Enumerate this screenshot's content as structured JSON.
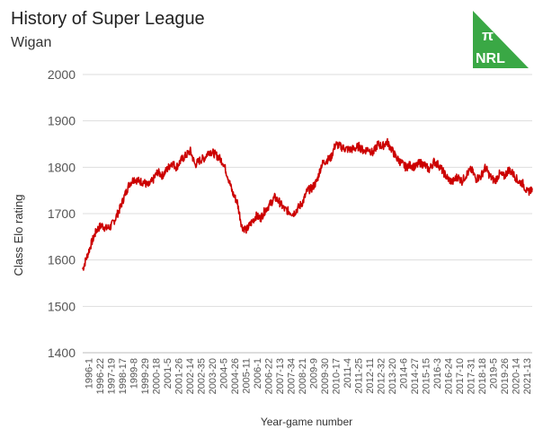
{
  "logo": {
    "line1": "π",
    "line2": "NRL",
    "color": "#3aa845"
  },
  "chart_data": {
    "type": "line",
    "title": "History of Super League",
    "subtitle": "Wigan",
    "xlabel": "Year-game number",
    "ylabel": "Class Elo rating",
    "ylim": [
      1400,
      2000
    ],
    "yticks": [
      1400,
      1500,
      1600,
      1700,
      1800,
      1900,
      2000
    ],
    "grid": true,
    "line_color": "#cc0000",
    "x_tick_labels": [
      "1996-1",
      "1996-22",
      "1997-19",
      "1998-17",
      "1999-8",
      "1999-29",
      "2000-18",
      "2001-5",
      "2001-26",
      "2002-14",
      "2002-35",
      "2003-20",
      "2004-5",
      "2004-26",
      "2005-11",
      "2006-1",
      "2006-22",
      "2007-13",
      "2007-34",
      "2008-21",
      "2009-9",
      "2009-30",
      "2010-17",
      "2011-4",
      "2011-25",
      "2012-11",
      "2012-32",
      "2013-20",
      "2014-6",
      "2014-27",
      "2015-15",
      "2016-3",
      "2016-24",
      "2017-10",
      "2017-31",
      "2018-18",
      "2019-5",
      "2019-26",
      "2020-14",
      "2021-13"
    ],
    "series": [
      {
        "values": [
          1580,
          1610,
          1640,
          1665,
          1675,
          1668,
          1672,
          1690,
          1712,
          1740,
          1765,
          1775,
          1770,
          1768,
          1760,
          1772,
          1790,
          1782,
          1795,
          1810,
          1800,
          1815,
          1825,
          1835,
          1805,
          1815,
          1820,
          1835,
          1830,
          1822,
          1810,
          1780,
          1745,
          1725,
          1672,
          1665,
          1680,
          1695,
          1690,
          1708,
          1720,
          1735,
          1725,
          1710,
          1705,
          1700,
          1712,
          1725,
          1750,
          1755,
          1770,
          1805,
          1815,
          1820,
          1850,
          1845,
          1840,
          1838,
          1840,
          1845,
          1835,
          1840,
          1830,
          1850,
          1845,
          1855,
          1838,
          1820,
          1810,
          1800,
          1805,
          1800,
          1810,
          1805,
          1795,
          1812,
          1805,
          1790,
          1775,
          1768,
          1780,
          1770,
          1785,
          1795,
          1775,
          1780,
          1800,
          1780,
          1770,
          1785,
          1780,
          1795,
          1785,
          1770,
          1765,
          1745,
          1755
        ]
      }
    ]
  }
}
